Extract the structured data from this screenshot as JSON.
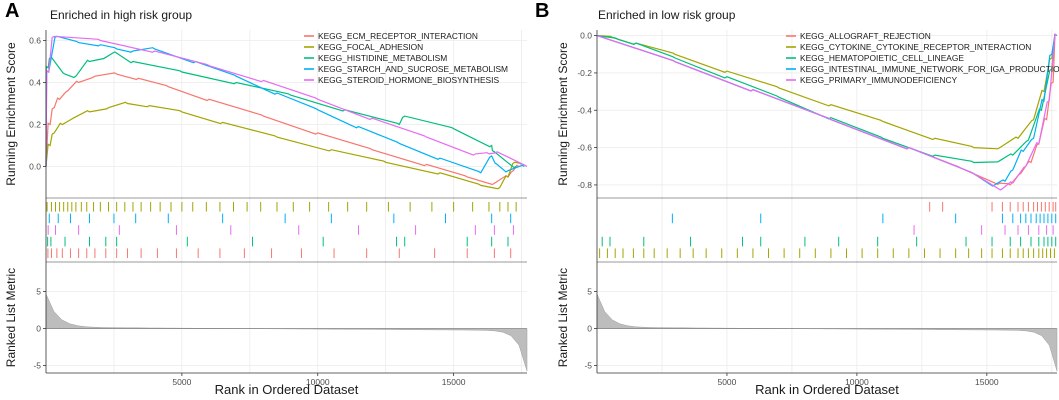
{
  "chart_data": [
    {
      "type": "line",
      "panel_label": "A",
      "title": "Enriched in high risk group",
      "ylabel_es": "Running Enrichment Score",
      "ylabel_rank": "Ranked List Metric",
      "xlabel": "Rank in Ordered Dataset",
      "xlim": [
        0,
        17700
      ],
      "es_ylim": [
        -0.15,
        0.65
      ],
      "es_yticks": [
        "0.6",
        "0.4",
        "0.2",
        "0.0"
      ],
      "es_ytick_values": [
        0.6,
        0.4,
        0.2,
        0.0
      ],
      "rank_ylim": [
        -6,
        9
      ],
      "rank_yticks": [
        "5",
        "0",
        "-5"
      ],
      "rank_ytick_values": [
        5,
        0,
        -5
      ],
      "xticks": [
        "5000",
        "10000",
        "15000"
      ],
      "xtick_values": [
        5000,
        10000,
        15000
      ],
      "legend_position": "top-right",
      "series": [
        {
          "name": "KEGG_ECM_RECEPTOR_INTERACTION",
          "color": "#F8766D",
          "x": [
            0,
            150,
            300,
            500,
            800,
            1200,
            1800,
            2600,
            3400,
            4500,
            6000,
            8000,
            10000,
            12000,
            14000,
            15500,
            16500,
            17000,
            17200,
            17400
          ],
          "y": [
            0,
            0.2,
            0.28,
            0.32,
            0.36,
            0.4,
            0.43,
            0.44,
            0.42,
            0.38,
            0.32,
            0.24,
            0.16,
            0.08,
            0.01,
            -0.05,
            -0.08,
            -0.05,
            -0.02,
            0.0
          ]
        },
        {
          "name": "KEGG_FOCAL_ADHESION",
          "color": "#A3A500",
          "x": [
            0,
            150,
            300,
            600,
            1000,
            1600,
            2300,
            3000,
            3800,
            5000,
            6500,
            8500,
            10500,
            12500,
            14500,
            16000,
            16700,
            17000,
            17250,
            17500
          ],
          "y": [
            0,
            0.1,
            0.16,
            0.2,
            0.23,
            0.26,
            0.28,
            0.3,
            0.29,
            0.26,
            0.21,
            0.14,
            0.08,
            0.02,
            -0.03,
            -0.09,
            -0.1,
            -0.05,
            0.02,
            0.01
          ]
        },
        {
          "name": "KEGG_HISTIDINE_METABOLISM",
          "color": "#00BF7D",
          "x": [
            0,
            80,
            200,
            700,
            1100,
            1600,
            2200,
            2600,
            3200,
            5000,
            7000,
            9000,
            11000,
            13000,
            13200,
            15000,
            16400,
            16500,
            17300
          ],
          "y": [
            0,
            0.47,
            0.52,
            0.44,
            0.43,
            0.5,
            0.52,
            0.54,
            0.5,
            0.45,
            0.4,
            0.34,
            0.27,
            0.2,
            0.24,
            0.18,
            0.1,
            0.07,
            0.0
          ]
        },
        {
          "name": "KEGG_STARCH_AND_SUCROSE_METABOLISM",
          "color": "#00B0F6",
          "x": [
            0,
            100,
            400,
            1200,
            2000,
            2600,
            3200,
            4000,
            5500,
            7000,
            8500,
            10000,
            11500,
            13000,
            14500,
            16000,
            16400,
            16600,
            17000,
            17600
          ],
          "y": [
            0,
            0.45,
            0.62,
            0.59,
            0.58,
            0.56,
            0.55,
            0.56,
            0.5,
            0.43,
            0.35,
            0.27,
            0.19,
            0.11,
            0.04,
            -0.03,
            0.05,
            0.01,
            -0.02,
            0.0
          ]
        },
        {
          "name": "KEGG_STEROID_HORMONE_BIOSYNTHESIS",
          "color": "#E76BF3",
          "x": [
            0,
            100,
            300,
            2000,
            4000,
            6000,
            8000,
            10000,
            12000,
            14000,
            15800,
            16300,
            16600,
            17700
          ],
          "y": [
            0,
            0.45,
            0.62,
            0.6,
            0.55,
            0.48,
            0.41,
            0.32,
            0.23,
            0.14,
            0.06,
            0.06,
            0.07,
            0.0
          ]
        }
      ],
      "hit_rows": [
        {
          "name": "KEGG_FOCAL_ADHESION",
          "color": "#A3A500",
          "hits": [
            40,
            200,
            350,
            500,
            650,
            800,
            950,
            1100,
            1300,
            1500,
            1750,
            2000,
            2300,
            2600,
            2900,
            3200,
            3500,
            3850,
            4200,
            4600,
            5000,
            5400,
            5900,
            6400,
            6900,
            7400,
            7900,
            8500,
            9100,
            9700,
            10400,
            11100,
            11800,
            12600,
            13400,
            14200,
            15000,
            15700,
            16300,
            16700,
            17000,
            17300
          ]
        },
        {
          "name": "KEGG_STARCH_AND_SUCROSE_METABOLISM",
          "color": "#00B0F6",
          "hits": [
            120,
            450,
            900,
            1600,
            2500,
            3300,
            4500,
            6500,
            8800,
            10500,
            12800,
            14700,
            16400,
            17100
          ]
        },
        {
          "name": "KEGG_STEROID_HORMONE_BIOSYNTHESIS",
          "color": "#E76BF3",
          "hits": [
            80,
            350,
            1200,
            2700,
            4800,
            6800,
            9300,
            11500,
            13600,
            15800,
            16500,
            17200
          ]
        },
        {
          "name": "KEGG_HISTIDINE_METABOLISM",
          "color": "#00BF7D",
          "hits": [
            60,
            180,
            700,
            1600,
            2200,
            2600,
            5200,
            7600,
            10200,
            12900,
            13200,
            15500,
            16400,
            17000
          ]
        },
        {
          "name": "KEGG_ECM_RECEPTOR_INTERACTION",
          "color": "#F8766D",
          "hits": [
            70,
            200,
            400,
            600,
            900,
            1200,
            1500,
            1800,
            2200,
            2600,
            3000,
            3500,
            4100,
            4800,
            5600,
            6400,
            7300,
            8300,
            9400,
            10600,
            11800,
            13000,
            14300,
            15500,
            16500,
            17100
          ]
        }
      ]
    },
    {
      "type": "line",
      "panel_label": "B",
      "title": "Enriched in low risk group",
      "ylabel_es": "Running Enrichment Score",
      "ylabel_rank": "Ranked List Metric",
      "xlabel": "Rank in Ordered Dataset",
      "xlim": [
        0,
        17700
      ],
      "es_ylim": [
        -0.87,
        0.03
      ],
      "es_yticks": [
        "0.0",
        "-0.2",
        "-0.4",
        "-0.6",
        "-0.8"
      ],
      "es_ytick_values": [
        0.0,
        -0.2,
        -0.4,
        -0.6,
        -0.8
      ],
      "rank_ylim": [
        -6,
        9
      ],
      "rank_yticks": [
        "5",
        "0",
        "-5"
      ],
      "rank_ytick_values": [
        5,
        0,
        -5
      ],
      "xticks": [
        "5000",
        "10000",
        "15000"
      ],
      "xtick_values": [
        5000,
        10000,
        15000
      ],
      "legend_position": "top-right",
      "series": [
        {
          "name": "KEGG_ALLOGRAFT_REJECTION",
          "color": "#F8766D",
          "x": [
            0,
            3000,
            6000,
            9000,
            12000,
            14000,
            15500,
            15900,
            16300,
            16700,
            17000,
            17300,
            17550,
            17700
          ],
          "y": [
            0,
            -0.14,
            -0.29,
            -0.45,
            -0.6,
            -0.71,
            -0.79,
            -0.8,
            -0.74,
            -0.68,
            -0.58,
            -0.45,
            -0.25,
            0.0
          ]
        },
        {
          "name": "KEGG_CYTOKINE_CYTOKINE_RECEPTOR_INTERACTION",
          "color": "#A3A500",
          "x": [
            0,
            600,
            1500,
            3000,
            5000,
            7000,
            9000,
            11000,
            13000,
            14500,
            15500,
            16200,
            16800,
            17200,
            17500,
            17700
          ],
          "y": [
            0,
            -0.01,
            -0.04,
            -0.1,
            -0.19,
            -0.28,
            -0.37,
            -0.46,
            -0.55,
            -0.6,
            -0.6,
            -0.55,
            -0.45,
            -0.3,
            -0.12,
            0.0
          ]
        },
        {
          "name": "KEGG_HEMATOPOIETIC_CELL_LINEAGE",
          "color": "#00BF7D",
          "x": [
            0,
            800,
            1500,
            3000,
            5000,
            7000,
            9000,
            11000,
            13000,
            14500,
            15500,
            16000,
            16600,
            17100,
            17500,
            17700
          ],
          "y": [
            0,
            -0.02,
            -0.04,
            -0.12,
            -0.22,
            -0.33,
            -0.44,
            -0.55,
            -0.64,
            -0.68,
            -0.67,
            -0.64,
            -0.56,
            -0.4,
            -0.18,
            0.0
          ]
        },
        {
          "name": "KEGG_INTESTINAL_IMMUNE_NETWORK_FOR_IGA_PRODUCTION",
          "color": "#00B0F6",
          "x": [
            0,
            3000,
            6000,
            9000,
            12000,
            14500,
            15300,
            15700,
            16000,
            16400,
            16800,
            17200,
            17500,
            17700
          ],
          "y": [
            0,
            -0.14,
            -0.29,
            -0.45,
            -0.6,
            -0.74,
            -0.8,
            -0.78,
            -0.72,
            -0.62,
            -0.55,
            -0.35,
            -0.1,
            0.0
          ]
        },
        {
          "name": "KEGG_PRIMARY_IMMUNODEFICIENCY",
          "color": "#E76BF3",
          "x": [
            0,
            3000,
            6000,
            9000,
            12000,
            14500,
            15600,
            16000,
            16500,
            17000,
            17400,
            17700
          ],
          "y": [
            0,
            -0.14,
            -0.29,
            -0.45,
            -0.6,
            -0.74,
            -0.82,
            -0.79,
            -0.7,
            -0.58,
            -0.35,
            0.0
          ]
        }
      ],
      "hit_rows": [
        {
          "name": "KEGG_ALLOGRAFT_REJECTION",
          "color": "#F8766D",
          "hits": [
            12800,
            13300,
            15200,
            15600,
            15900,
            16200,
            16400,
            16600,
            16800,
            16950,
            17100,
            17250,
            17400,
            17550,
            17650
          ]
        },
        {
          "name": "KEGG_INTESTINAL_IMMUNE_NETWORK_FOR_IGA_PRODUCTION",
          "color": "#00B0F6",
          "hits": [
            2900,
            6300,
            11000,
            13800,
            15600,
            16000,
            16300,
            16500,
            16700,
            16900,
            17050,
            17200,
            17350,
            17500,
            17650
          ]
        },
        {
          "name": "KEGG_PRIMARY_IMMUNODEFICIENCY",
          "color": "#E76BF3",
          "hits": [
            12200,
            14800,
            15700,
            16200,
            16600,
            17000,
            17300,
            17550
          ]
        },
        {
          "name": "KEGG_HEMATOPOIETIC_CELL_LINEAGE",
          "color": "#00BF7D",
          "hits": [
            200,
            500,
            1800,
            3600,
            5600,
            6300,
            8000,
            9300,
            10800,
            12300,
            14200,
            15200,
            15900,
            16300,
            16700,
            17000,
            17200,
            17350,
            17500,
            17650
          ]
        },
        {
          "name": "KEGG_CYTOKINE_CYTOKINE_RECEPTOR_INTERACTION",
          "color": "#A3A500",
          "hits": [
            100,
            400,
            700,
            1000,
            1400,
            1800,
            2200,
            2700,
            3200,
            3700,
            4200,
            4800,
            5400,
            6000,
            6600,
            7200,
            7800,
            8400,
            9000,
            9600,
            10200,
            10800,
            11400,
            12000,
            12600,
            13200,
            13800,
            14300,
            14800,
            15200,
            15600,
            15900,
            16200,
            16400,
            16600,
            16800,
            17000,
            17150,
            17300,
            17450,
            17600
          ]
        }
      ]
    }
  ]
}
